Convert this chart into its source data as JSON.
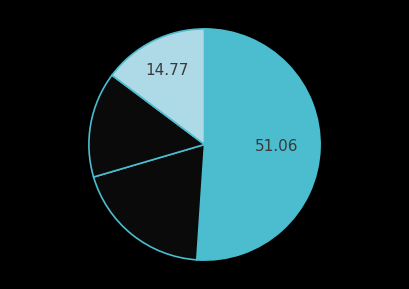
{
  "values": [
    51.06,
    19.4,
    14.77,
    14.77
  ],
  "colors": [
    "#4BBDCE",
    "#0a0a0a",
    "#0a0a0a",
    "#AEDAE8"
  ],
  "edge_color": "#4BBDCE",
  "edge_linewidth": 1.2,
  "background_color": "#000000",
  "text_color": "#3a3a3a",
  "label_teal": "51.06",
  "label_lightblue": "14.77",
  "label_fontsize": 11,
  "startangle": 90,
  "figsize": [
    4.09,
    2.89
  ],
  "dpi": 100
}
